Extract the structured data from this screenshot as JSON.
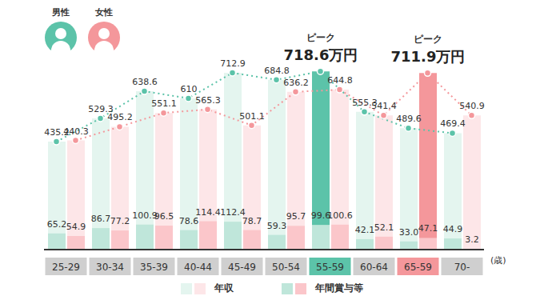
{
  "chart_data": {
    "type": "bar",
    "categories": [
      "25-29",
      "30-34",
      "35-39",
      "40-44",
      "45-49",
      "50-54",
      "55-59",
      "60-64",
      "65-59",
      "70-"
    ],
    "x_label": "(歳)",
    "ylim": [
      0,
      800
    ],
    "tick_labels": "x",
    "data_labels": true,
    "legend": "bottom",
    "groups": [
      {
        "name": "男性",
        "color": "#5cc3a9"
      },
      {
        "name": "女性",
        "color": "#f4979b"
      }
    ],
    "series": [
      {
        "name": "年収",
        "group": "男性",
        "colors": [
          "#e4f5ef",
          "#e4f5ef",
          "#e4f5ef",
          "#e4f5ef",
          "#e4f5ef",
          "#e4f5ef",
          "#5cc3a9",
          "#e4f5ef",
          "#e4f5ef",
          "#e4f5ef"
        ],
        "line_style": "dotted",
        "marker": "circle",
        "values": [
          435.2,
          529.3,
          638.6,
          610,
          712.9,
          684.8,
          718.6,
          555.3,
          489.6,
          469.4
        ],
        "value_labels": [
          "435.2",
          "529.3",
          "638.6",
          "610",
          "712.9",
          "684.8",
          null,
          "555.3",
          "489.6",
          "469.4"
        ]
      },
      {
        "name": "年収",
        "group": "女性",
        "colors": [
          "#fde6e8",
          "#fde6e8",
          "#fde6e8",
          "#fde6e8",
          "#fde6e8",
          "#fde6e8",
          "#fde6e8",
          "#fde6e8",
          "#f4979b",
          "#fde6e8"
        ],
        "line_style": "dotted",
        "marker": "circle",
        "values": [
          440.3,
          495.2,
          551.1,
          565.3,
          501.1,
          636.2,
          644.8,
          541.4,
          711.9,
          540.9
        ],
        "value_labels": [
          "440.3",
          "495.2",
          "551.1",
          "565.3",
          "501.1",
          "636.2",
          "644.8",
          "541.4",
          null,
          "540.9"
        ]
      },
      {
        "name": "年間賞与等",
        "group": "男性",
        "color": "#bfe6da",
        "values": [
          65.2,
          86.7,
          100.9,
          78.6,
          112.4,
          59.3,
          99.6,
          42.1,
          33.0,
          44.9
        ],
        "value_labels": [
          "65.2",
          "86.7",
          "100.9",
          "78.6",
          "112.4",
          "59.3",
          "99.6",
          "42.1",
          "33.0",
          "44.9"
        ]
      },
      {
        "name": "年間賞与等",
        "group": "女性",
        "color": "#fbc6ca",
        "values": [
          54.9,
          77.2,
          96.5,
          114.4,
          78.7,
          95.7,
          100.6,
          52.1,
          47.1,
          3.2
        ],
        "value_labels": [
          "54.9",
          "77.2",
          "96.5",
          "114.4",
          "78.7",
          "95.7",
          "100.6",
          "52.1",
          "47.1",
          "3.2"
        ]
      }
    ],
    "annotations": [
      {
        "group": "男性",
        "category": "55-59",
        "label": "ピーク",
        "value_label": "718.6万円"
      },
      {
        "group": "女性",
        "category": "65-59",
        "label": "ピーク",
        "value_label": "711.9万円"
      }
    ]
  }
}
